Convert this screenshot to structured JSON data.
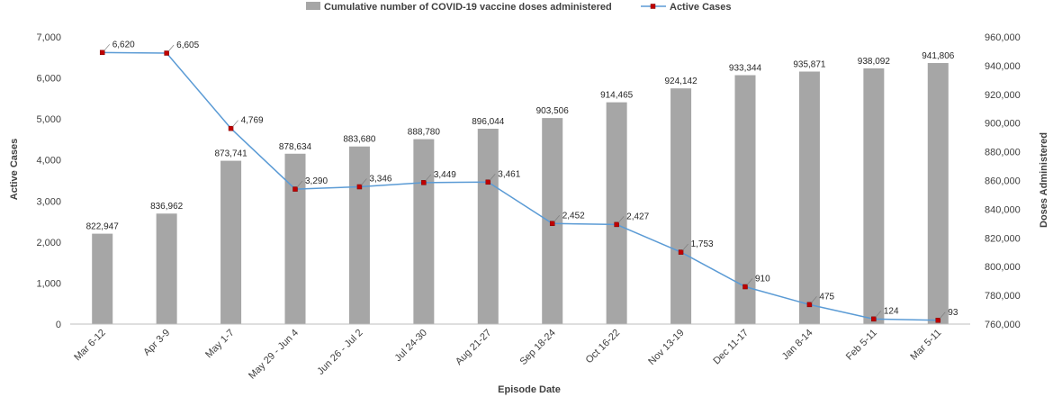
{
  "chart_data": {
    "type": "bar+line",
    "categories": [
      "Mar 6-12",
      "Apr 3-9",
      "May 1-7",
      "May 29 - Jun 4",
      "Jun 26 - Jul 2",
      "Jul 24-30",
      "Aug 21-27",
      "Sep 18-24",
      "Oct 16-22",
      "Nov 13-19",
      "Dec 11-17",
      "Jan 8-14",
      "Feb 5-11",
      "Mar 5-11"
    ],
    "xlabel": "Episode Date",
    "ylabel_left": "Active Cases",
    "ylabel_right": "Doses Administered",
    "ylim_left": [
      0,
      7000
    ],
    "ylim_right": [
      760000,
      960000
    ],
    "yticks_left": [
      "0",
      "1,000",
      "2,000",
      "3,000",
      "4,000",
      "5,000",
      "6,000",
      "7,000"
    ],
    "yticks_right": [
      "760,000",
      "780,000",
      "800,000",
      "820,000",
      "840,000",
      "860,000",
      "880,000",
      "900,000",
      "920,000",
      "940,000",
      "960,000"
    ],
    "legend_position": "top",
    "grid": false,
    "series": [
      {
        "name": "Cumulative number of COVID-19 vaccine doses administered",
        "kind": "bar",
        "axis": "right",
        "color": "#a6a6a6",
        "values": [
          822947,
          836962,
          873741,
          878634,
          883680,
          888780,
          896044,
          903506,
          914465,
          924142,
          933344,
          935871,
          938092,
          941806
        ],
        "labels": [
          "822,947",
          "836,962",
          "873,741",
          "878,634",
          "883,680",
          "888,780",
          "896,044",
          "903,506",
          "914,465",
          "924,142",
          "933,344",
          "935,871",
          "938,092",
          "941,806"
        ]
      },
      {
        "name": "Active Cases",
        "kind": "line",
        "axis": "left",
        "color": "#5b9bd5",
        "marker_color": "#c00000",
        "values": [
          6620,
          6605,
          4769,
          3290,
          3346,
          3449,
          3461,
          2452,
          2427,
          1753,
          910,
          475,
          124,
          93
        ],
        "labels": [
          "6,620",
          "6,605",
          "4,769",
          "3,290",
          "3,346",
          "3,449",
          "3,461",
          "2,452",
          "2,427",
          "1,753",
          "910",
          "475",
          "124",
          "93"
        ]
      }
    ]
  }
}
